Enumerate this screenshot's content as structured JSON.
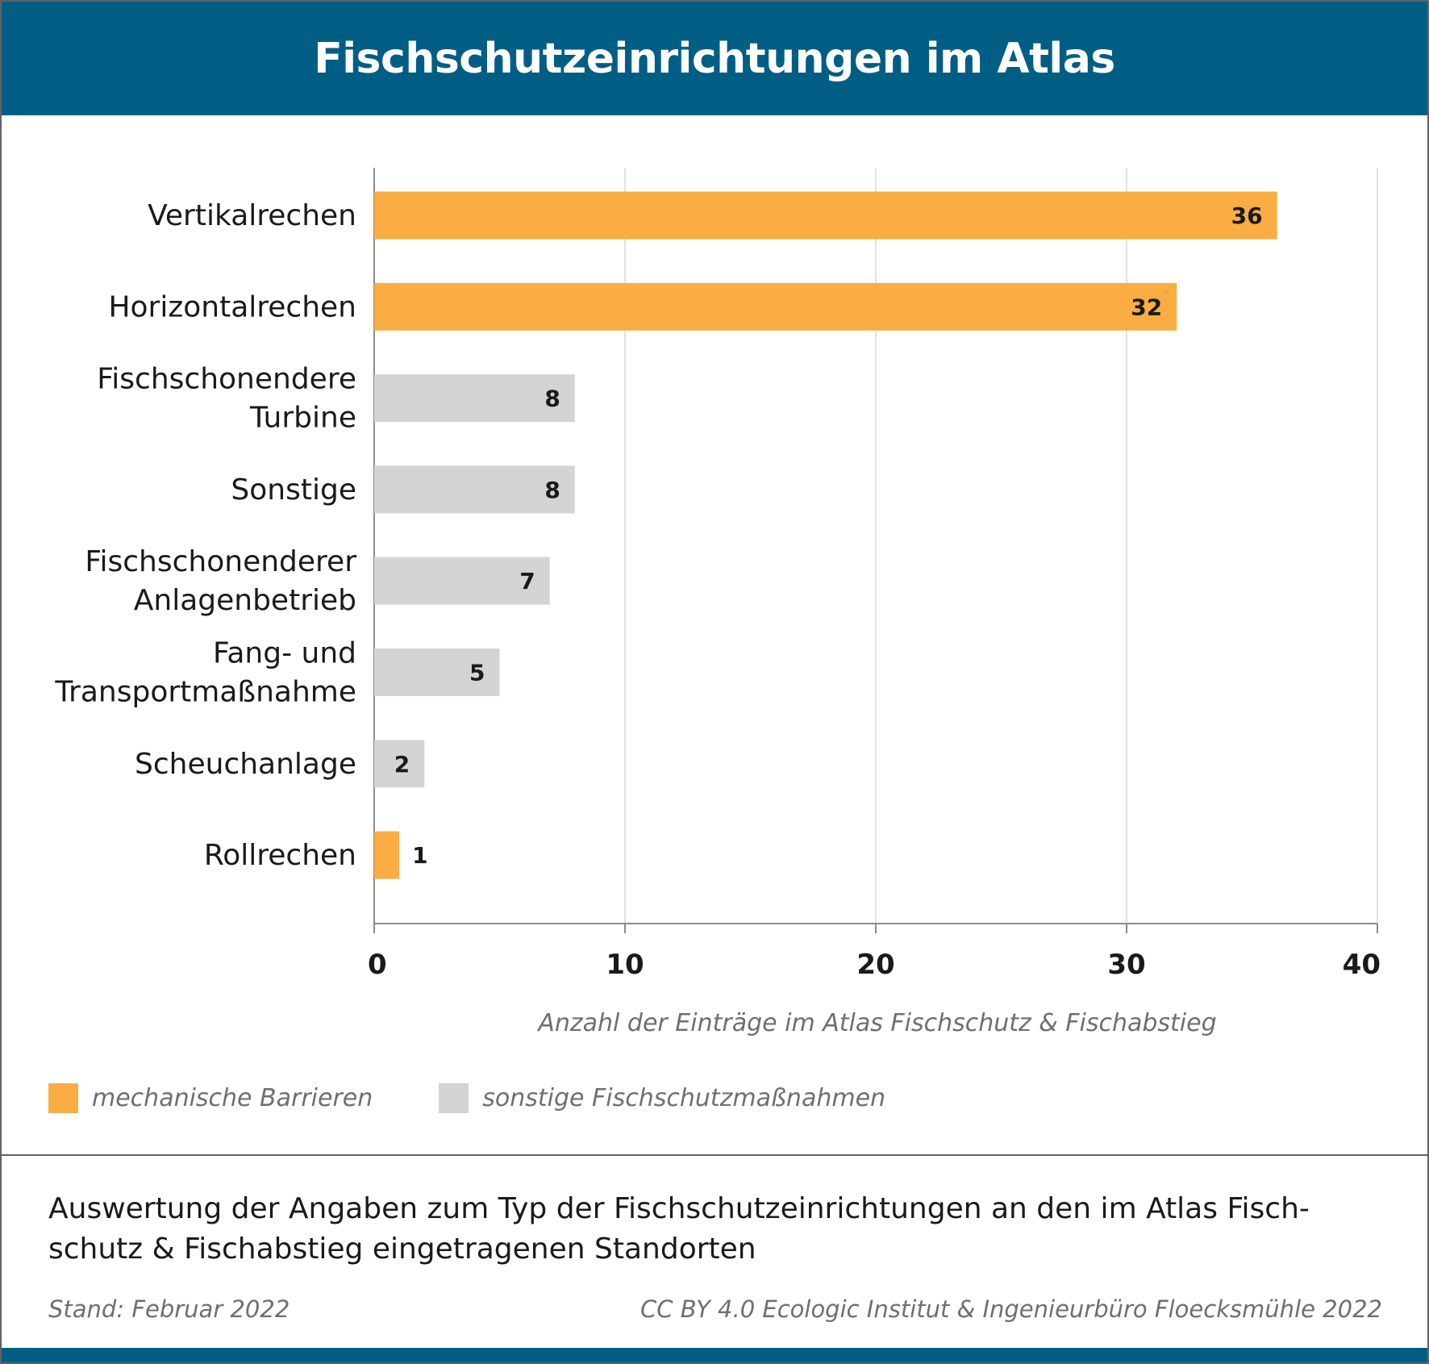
{
  "header": {
    "title": "Fischschutzeinrichtungen im Atlas"
  },
  "colors": {
    "header": "#005e85",
    "mechanisch": "#f9ad42",
    "sonstige": "#d3d4d5",
    "grid": "#d9d9d9",
    "axis": "#8c8c8c"
  },
  "chart_data": {
    "type": "bar",
    "orientation": "horizontal",
    "categories": [
      [
        "Vertikalrechen"
      ],
      [
        "Horizontalrechen"
      ],
      [
        "Fischschonendere",
        "Turbine"
      ],
      [
        "Sonstige"
      ],
      [
        "Fischschonenderer",
        "Anlagenbetrieb"
      ],
      [
        "Fang- und",
        "Transportmaßnahme"
      ],
      [
        "Scheuchanlage"
      ],
      [
        "Rollrechen"
      ]
    ],
    "values": [
      36,
      32,
      8,
      8,
      7,
      5,
      2,
      1
    ],
    "value_labels": [
      "36",
      "32",
      "8",
      "8",
      "7",
      "5",
      "2",
      "1"
    ],
    "groups": [
      "mechanisch",
      "mechanisch",
      "sonstige",
      "sonstige",
      "sonstige",
      "sonstige",
      "sonstige",
      "mechanisch"
    ],
    "xticks": [
      0,
      10,
      20,
      30,
      40
    ],
    "xlim": [
      0,
      40
    ],
    "xlabel": "Anzahl der Einträge im Atlas Fischschutz & Fischabstieg",
    "grid": "vertical",
    "legend_position": "bottom-left",
    "legend": [
      {
        "key": "mechanisch",
        "label": "mechanische Barrieren"
      },
      {
        "key": "sonstige",
        "label": "sonstige Fischschutzmaßnahmen"
      }
    ]
  },
  "caption": "Auswertung der Angaben zum Typ der Fischschutzeinrichtungen an den im Atlas Fisch-schutz & Fischabstieg eingetragenen Standorten",
  "caption_lines": [
    "Auswertung der Angaben zum Typ der Fischschutzeinrichtungen an den im Atlas Fisch-",
    "schutz & Fischabstieg eingetragenen Standorten"
  ],
  "footer": {
    "stand": "Stand: Februar 2022",
    "credit": "CC BY 4.0 Ecologic Institut & Ingenieurbüro Floecksmühle 2022"
  }
}
